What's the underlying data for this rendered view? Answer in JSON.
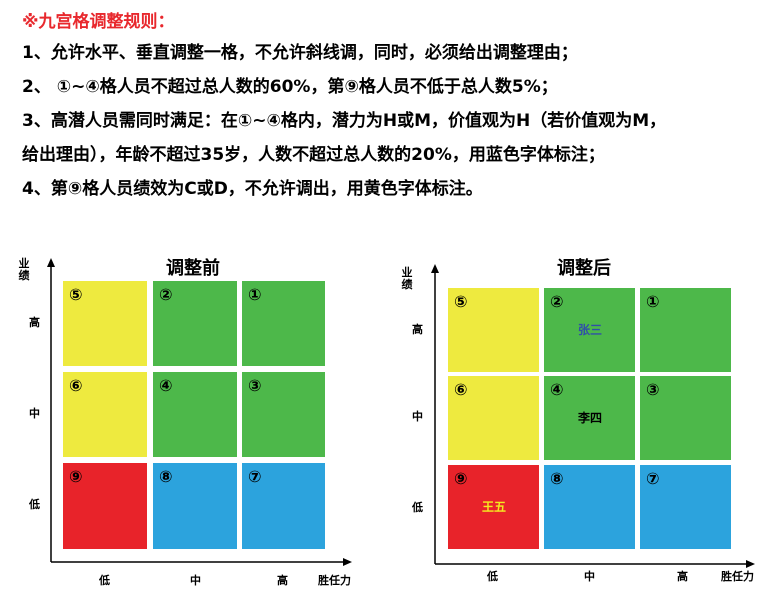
{
  "rules": {
    "title": "※九宫格调整规则：",
    "lines": [
      "1、允许水平、垂直调整一格，不允许斜线调，同时，必须给出调整理由；",
      "2、 ①~④格人员不超过总人数的60%，第⑨格人员不低于总人数5%；",
      "3、高潜人员需同时满足：在①~④格内，潜力为H或M，价值观为H（若价值观为M，",
      "给出理由），年龄不超过35岁，人数不超过总人数的20%，用蓝色字体标注；",
      "4、第⑨格人员绩效为C或D，不允许调出，用黄色字体标注。"
    ]
  },
  "axes": {
    "y_title": "业绩",
    "x_title": "胜任力",
    "y_levels": [
      "高",
      "中",
      "低"
    ],
    "x_levels": [
      "低",
      "中",
      "高"
    ]
  },
  "colors": {
    "yellow": "#eeea3f",
    "green": "#4db84a",
    "red": "#e8232a",
    "blue": "#2ca3dd",
    "blue_text": "#3050a8",
    "yellow_text": "#f4ea20"
  },
  "before": {
    "title": "调整前",
    "grid": [
      [
        {
          "num": "⑤",
          "color": "yellow"
        },
        {
          "num": "②",
          "color": "green"
        },
        {
          "num": "①",
          "color": "green"
        }
      ],
      [
        {
          "num": "⑥",
          "color": "yellow"
        },
        {
          "num": "④",
          "color": "green"
        },
        {
          "num": "③",
          "color": "green"
        }
      ],
      [
        {
          "num": "⑨",
          "color": "red"
        },
        {
          "num": "⑧",
          "color": "blue"
        },
        {
          "num": "⑦",
          "color": "blue"
        }
      ]
    ]
  },
  "after": {
    "title": "调整后",
    "grid": [
      [
        {
          "num": "⑤",
          "color": "yellow"
        },
        {
          "num": "②",
          "color": "green",
          "person": "张三",
          "person_color": "blue_text"
        },
        {
          "num": "①",
          "color": "green"
        }
      ],
      [
        {
          "num": "⑥",
          "color": "yellow"
        },
        {
          "num": "④",
          "color": "green",
          "person": "李四",
          "person_color": "black"
        },
        {
          "num": "③",
          "color": "green"
        }
      ],
      [
        {
          "num": "⑨",
          "color": "red",
          "person": "王五",
          "person_color": "yellow_text"
        },
        {
          "num": "⑧",
          "color": "blue"
        },
        {
          "num": "⑦",
          "color": "blue"
        }
      ]
    ]
  }
}
